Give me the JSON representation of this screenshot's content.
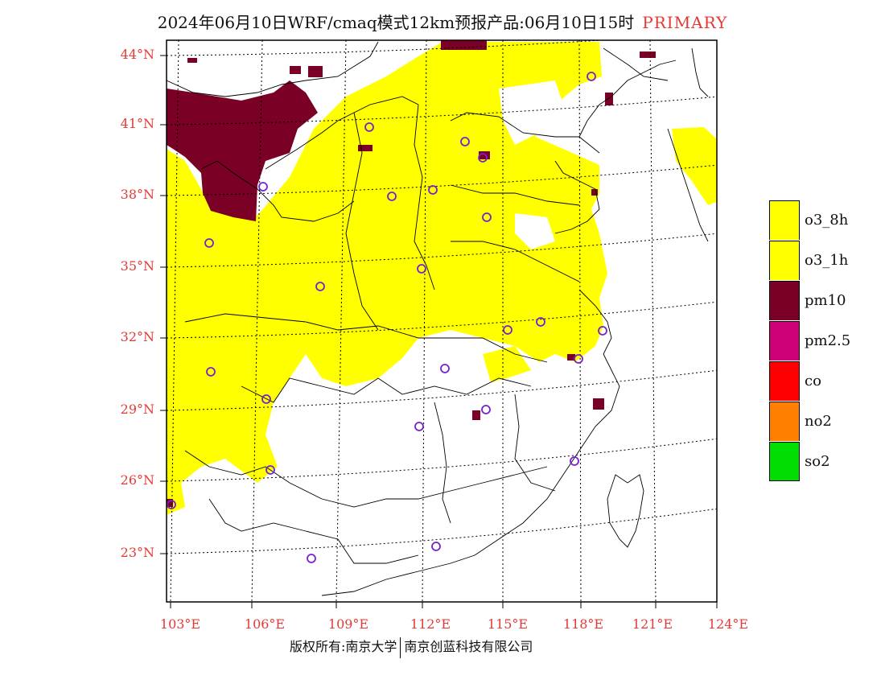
{
  "title": {
    "main": "2024年06月10日WRF/cmaq模式12km预报产品:06月10日15时",
    "tag": "PRIMARY"
  },
  "lat_labels": [
    "44°N",
    "41°N",
    "38°N",
    "35°N",
    "32°N",
    "29°N",
    "26°N",
    "23°N"
  ],
  "lon_labels": [
    "103°E",
    "106°E",
    "109°E",
    "112°E",
    "115°E",
    "118°E",
    "121°E",
    "124°E"
  ],
  "legend": [
    {
      "label": "o3_8h",
      "color": "#ffff00"
    },
    {
      "label": "o3_1h",
      "color": "#ffff00"
    },
    {
      "label": "pm10",
      "color": "#7b0026"
    },
    {
      "label": "pm2.5",
      "color": "#cc0077"
    },
    {
      "label": "co",
      "color": "#ff0000"
    },
    {
      "label": "no2",
      "color": "#ff7f00"
    },
    {
      "label": "so2",
      "color": "#00dd00"
    }
  ],
  "footer": {
    "left": "版权所有:南京大学",
    "right": "南京创蓝科技有限公司"
  },
  "colors": {
    "o3": "#ffff00",
    "pm10": "#7b0026",
    "axis_label": "#e53935",
    "city_marker": "#7722cc"
  }
}
